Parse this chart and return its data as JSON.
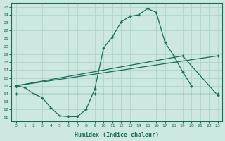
{
  "xlabel": "Humidex (Indice chaleur)",
  "bg_color": "#cce8e0",
  "line_color": "#1a6b5a",
  "grid_color": "#aed4cc",
  "xlim": [
    -0.5,
    23.5
  ],
  "ylim": [
    10.5,
    25.5
  ],
  "xticks": [
    0,
    1,
    2,
    3,
    4,
    5,
    6,
    7,
    8,
    9,
    10,
    11,
    12,
    13,
    14,
    15,
    16,
    17,
    18,
    19,
    20,
    21,
    22,
    23
  ],
  "yticks": [
    11,
    12,
    13,
    14,
    15,
    16,
    17,
    18,
    19,
    20,
    21,
    22,
    23,
    24,
    25
  ],
  "line1_x": [
    0,
    1,
    2,
    3,
    4,
    5,
    6,
    7,
    8,
    9,
    10,
    11,
    12,
    13,
    14,
    15,
    16,
    17,
    18,
    19,
    20
  ],
  "line1_y": [
    15.0,
    14.8,
    14.0,
    13.5,
    12.2,
    11.2,
    11.1,
    11.1,
    12.0,
    14.6,
    19.8,
    21.2,
    23.1,
    23.8,
    24.0,
    24.8,
    24.3,
    20.5,
    18.8,
    16.8,
    15.0
  ],
  "line2_x": [
    0,
    9,
    23
  ],
  "line2_y": [
    14.0,
    14.0,
    14.0
  ],
  "line3_x": [
    0,
    23
  ],
  "line3_y": [
    15.0,
    18.8
  ],
  "line4_x": [
    0,
    19,
    23
  ],
  "line4_y": [
    15.0,
    18.8,
    13.8
  ]
}
